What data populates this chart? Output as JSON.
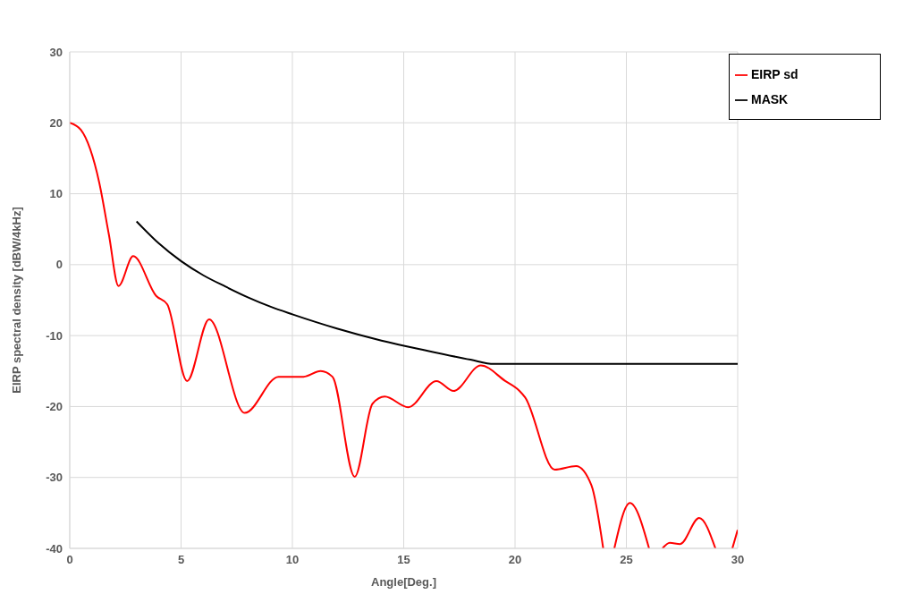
{
  "chart_data": {
    "type": "line",
    "xlabel": "Angle[Deg.]",
    "ylabel": "EIRP spectral density [dBW/4kHz]",
    "xlim": [
      0,
      30
    ],
    "xticks": [
      0,
      5,
      10,
      15,
      20,
      25,
      30
    ],
    "ylim": [
      -40,
      30
    ],
    "yticks": [
      -40,
      -30,
      -20,
      -10,
      0,
      10,
      20,
      30
    ],
    "grid": true,
    "legend": "top right",
    "marker": "none",
    "line_style": "solid",
    "series": [
      {
        "name": "MASK",
        "color": "#000000",
        "x": [
          3,
          4,
          5,
          6,
          7,
          8,
          9,
          10,
          12,
          14,
          16,
          18,
          19.05,
          30
        ],
        "values": [
          6.1,
          3,
          0.5,
          -1.5,
          -3.1,
          -4.6,
          -5.9,
          -7,
          -9,
          -10.7,
          -12.1,
          -13.4,
          -14,
          -14
        ]
      },
      {
        "name": "EIRP sd",
        "color": "#ff0000",
        "x": [
          0,
          0.5,
          1.33,
          1.76,
          2.19,
          2.85,
          3.88,
          4.38,
          5.27,
          6.26,
          7.86,
          9.38,
          10.5,
          11.27,
          11.8,
          12.8,
          13.6,
          14.15,
          15.2,
          16.47,
          17.24,
          18.46,
          19.56,
          20.2,
          20.45,
          21.78,
          22.74,
          23.43,
          23.96,
          24.2,
          24.46,
          25.16,
          26.02,
          26.3,
          26.62,
          26.95,
          27.41,
          28.27,
          29,
          29.4,
          29.76,
          30
        ],
        "values": [
          20,
          19,
          11.5,
          4.2,
          -3,
          1.2,
          -4.4,
          -5.6,
          -16.4,
          -7.7,
          -20.9,
          -15.8,
          -15.8,
          -15,
          -15.8,
          -29.9,
          -19.6,
          -18.6,
          -20.1,
          -16.4,
          -17.8,
          -14.2,
          -16.4,
          -17.8,
          -18.7,
          -28.9,
          -28.4,
          -31.1,
          -40,
          null,
          -40,
          -33.6,
          -40,
          null,
          -40,
          -39.2,
          -39.4,
          -35.7,
          -40,
          null,
          -40,
          -37.4
        ]
      }
    ]
  }
}
